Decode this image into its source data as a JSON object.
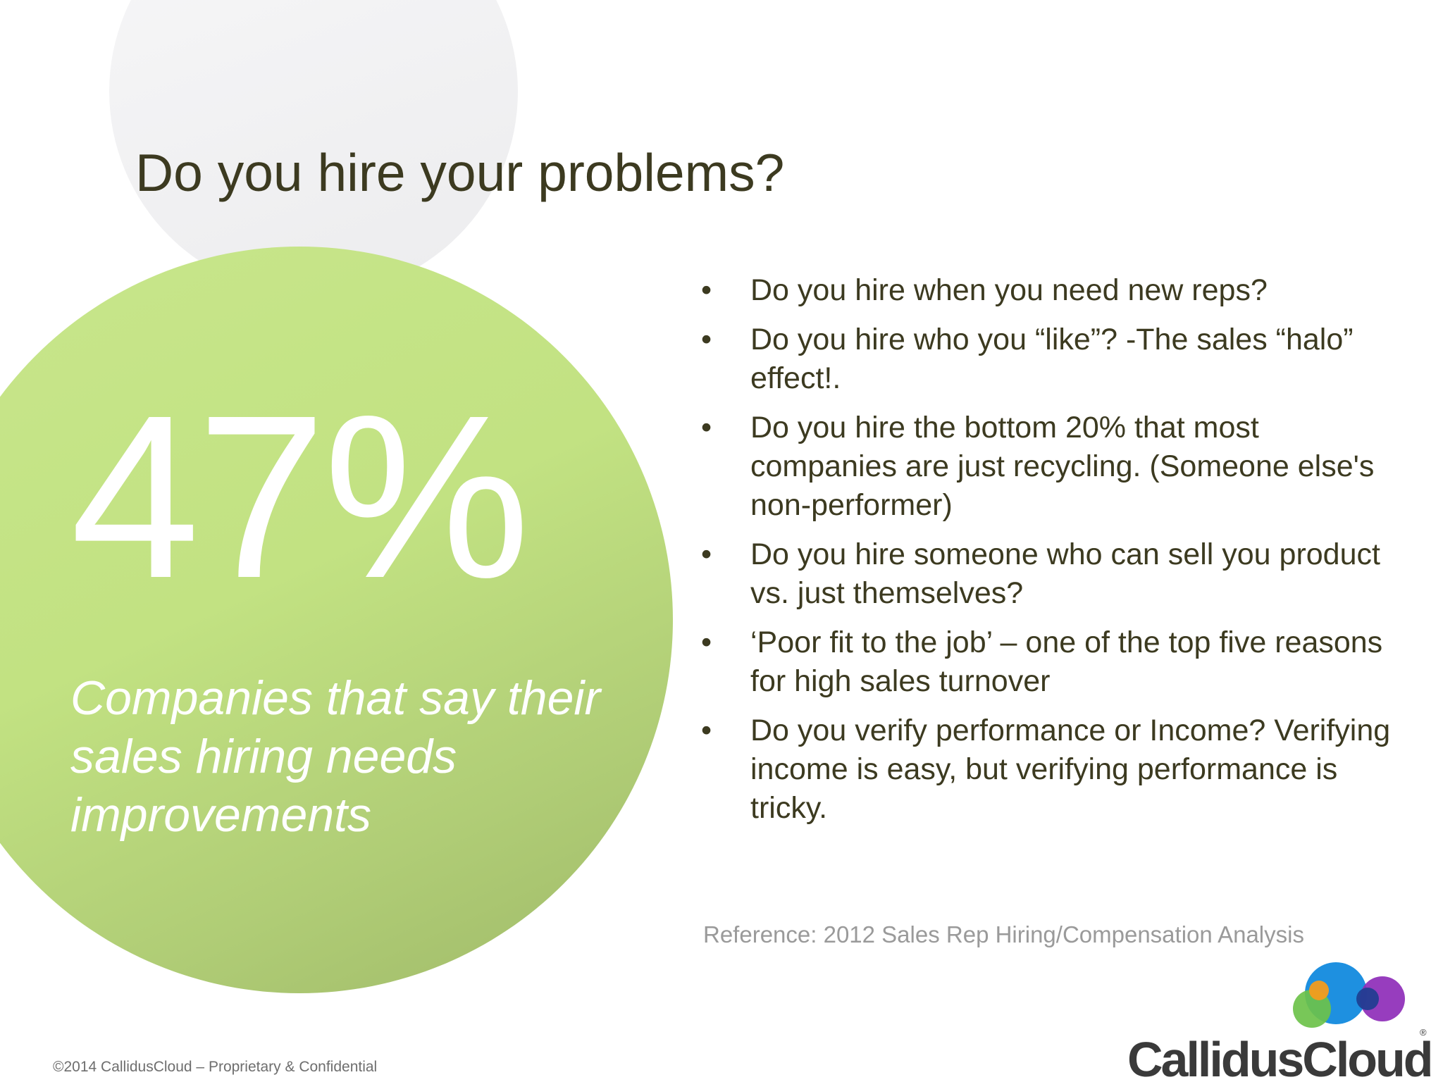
{
  "slide": {
    "title": "Do you hire your problems?",
    "stat": {
      "value": "47%",
      "caption": "Companies that say their sales hiring needs improvements"
    },
    "bullet_symbol": "•",
    "bullets": [
      "Do you hire when you need new reps?",
      "Do you hire who you “like”? -The sales “halo” effect!.",
      "Do you hire the bottom 20% that most companies are just recycling. (Someone else's non-performer)",
      "Do you hire someone who can sell you product  vs. just themselves?",
      "‘Poor fit to the job’ – one of the top five reasons for high sales turnover",
      "Do you verify performance or Income? Verifying income is easy, but verifying performance is tricky."
    ],
    "reference": "Reference:  2012 Sales Rep Hiring/Compensation Analysis",
    "footer": "©2014 CallidusCloud – Proprietary & Confidential"
  },
  "logo": {
    "text": "CallidusCloud",
    "registered": "®",
    "mark_icon": "callidus-cloud-circles-icon",
    "colors": {
      "blue": "#1e90e0",
      "purple": "#8e2cb8",
      "green": "#6cc24a",
      "orange": "#f39c1e",
      "navy": "#1d3d8f"
    }
  },
  "colors": {
    "title_text": "#3c3a20",
    "green_circle": "#c2e282",
    "reference_text": "#9a9a9a"
  }
}
